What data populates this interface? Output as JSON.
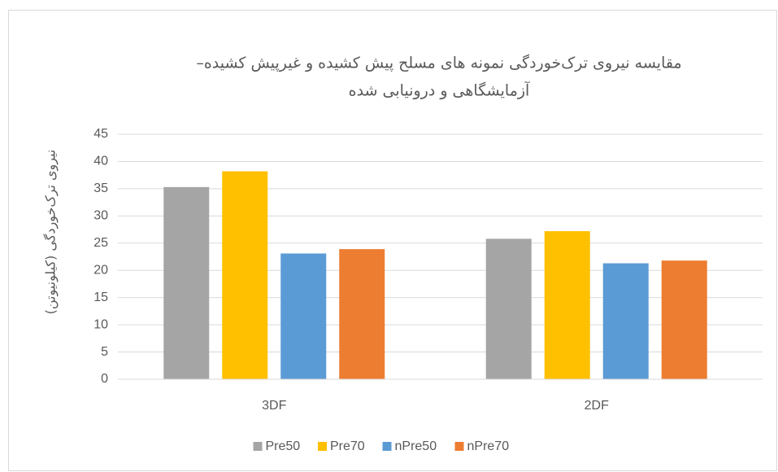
{
  "chart_data": {
    "type": "bar",
    "title": [
      "مقایسه نیروی ترک‌خوردگی نمونه های مسلح پیش کشیده و غیرپیش کشیده–",
      "آزمایشگاهی و درونیابی شده"
    ],
    "y_label": "نیروی ترک‌خوردگی (کیلونیوتن)",
    "categories": [
      "3DF",
      "2DF"
    ],
    "series": [
      {
        "name": "Pre50",
        "color": "#a5a5a5",
        "values": [
          35.3,
          25.8
        ]
      },
      {
        "name": "Pre70",
        "color": "#ffc000",
        "values": [
          38.2,
          27.2
        ]
      },
      {
        "name": "nPre50",
        "color": "#5b9bd5",
        "values": [
          23.1,
          21.3
        ]
      },
      {
        "name": "nPre70",
        "color": "#ed7d31",
        "values": [
          23.9,
          21.8
        ]
      }
    ],
    "ylim": [
      0,
      45
    ],
    "yticks": [
      0,
      5,
      10,
      15,
      20,
      25,
      30,
      35,
      40,
      45
    ],
    "grid": true,
    "legend": "bottom"
  }
}
